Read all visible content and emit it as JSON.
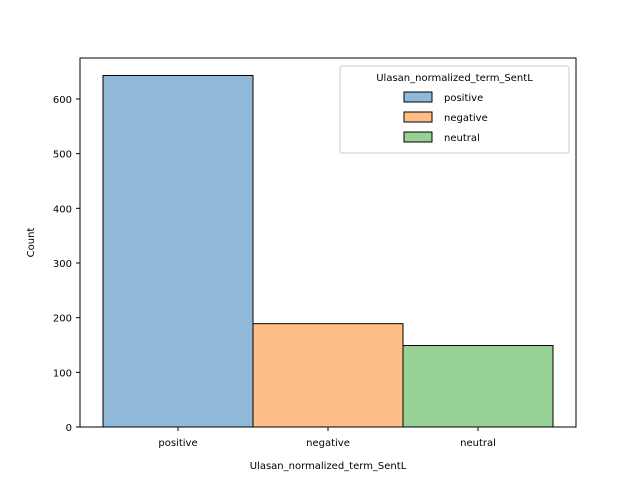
{
  "chart_data": {
    "type": "bar",
    "categories": [
      "positive",
      "negative",
      "neutral"
    ],
    "values": [
      643,
      189,
      149
    ],
    "colors": [
      "#8fb8d9",
      "#ffbe86",
      "#97d196"
    ],
    "xlabel": "Ulasan_normalized_term_SentL",
    "ylabel": "Count",
    "ylim": [
      0,
      675
    ],
    "yticks": [
      0,
      100,
      200,
      300,
      400,
      500,
      600
    ],
    "grid": false,
    "legend": {
      "title": "Ulasan_normalized_term_SentL",
      "placement": "top-right",
      "entries": [
        "positive",
        "negative",
        "neutral"
      ]
    }
  }
}
